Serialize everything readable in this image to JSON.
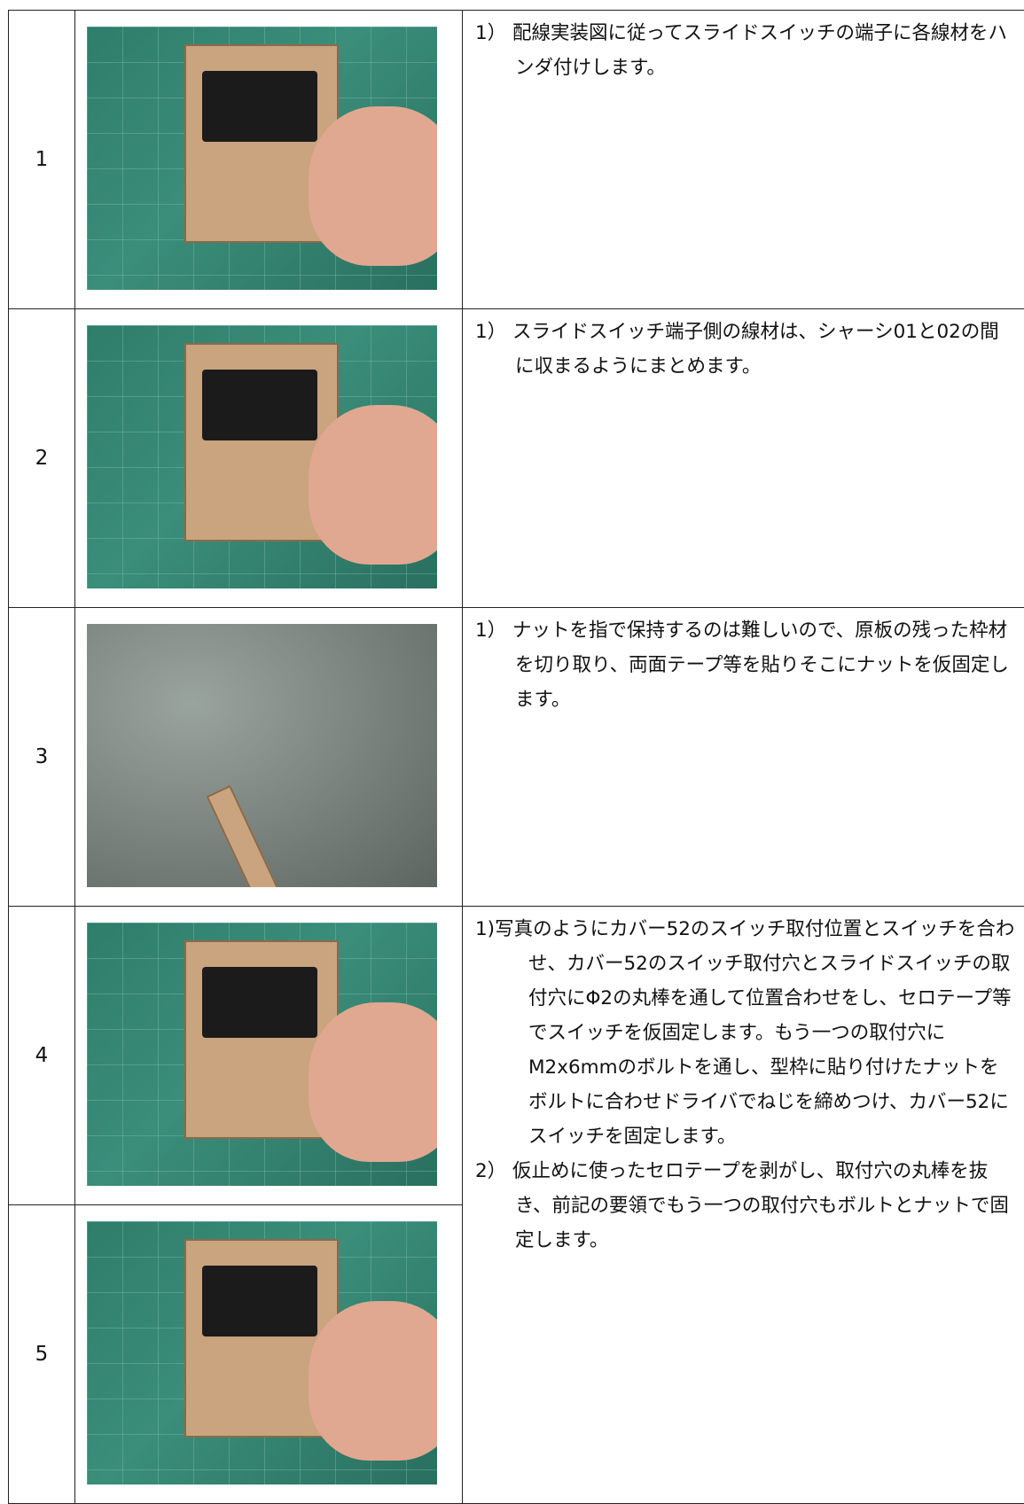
{
  "steps": [
    {
      "number": "1",
      "instructions": [
        "1） 配線実装図に従ってスライドスイッチの端子に各線材をハンダ付けします。"
      ]
    },
    {
      "number": "2",
      "instructions": [
        "1） スライドスイッチ端子側の線材は、シャーシ01と02の間に収まるようにまとめます。"
      ]
    },
    {
      "number": "3",
      "instructions": [
        "1） ナットを指で保持するのは難しいので、原板の残った枠材を切り取り、両面テープ等を貼りそこにナットを仮固定します。"
      ]
    },
    {
      "number": "4",
      "instructions": [
        "1)写真のようにカバー52のスイッチ取付位置とスイッチを合わせ、カバー52のスイッチ取付穴とスライドスイッチの取付穴にΦ2の丸棒を通して位置合わせをし、セロテープ等でスイッチを仮固定します。もう一つの取付穴にM2x6mmのボルトを通し、型枠に貼り付けたナットをボルトに合わせドライバでねじを締めつけ、カバー52にスイッチを固定します。",
        "2） 仮止めに使ったセロテープを剥がし、取付穴の丸棒を抜き、前記の要領でもう一つの取付穴もボルトとナットで固定します。"
      ]
    },
    {
      "number": "5",
      "instructions": []
    }
  ]
}
